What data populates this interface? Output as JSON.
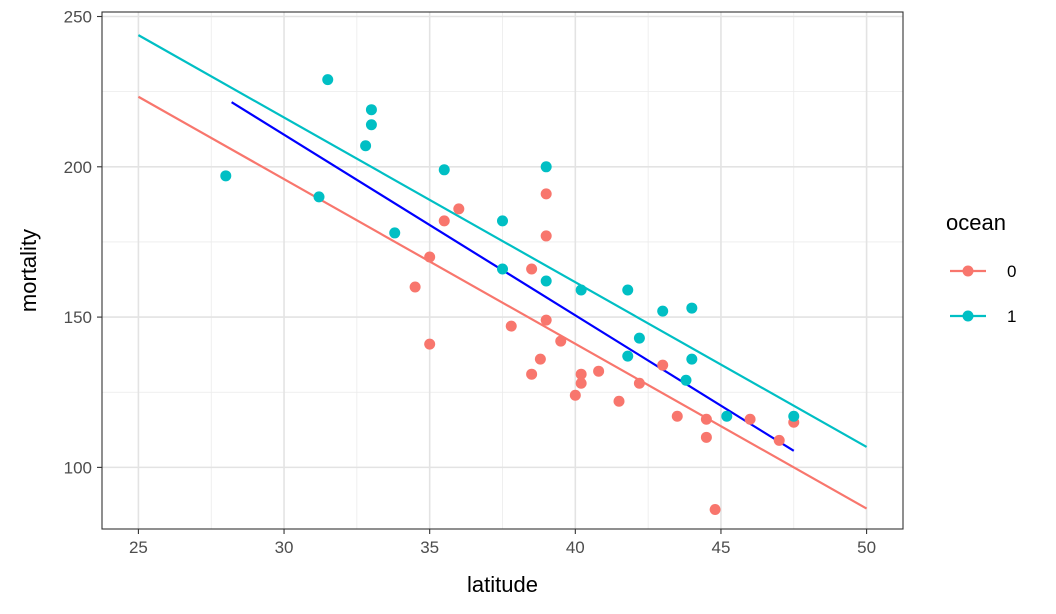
{
  "chart_data": {
    "type": "scatter",
    "xlabel": "latitude",
    "ylabel": "mortality",
    "xlim": [
      23.75,
      51.25
    ],
    "ylim": [
      79.5,
      251.5
    ],
    "xticks": [
      25,
      30,
      35,
      40,
      45,
      50
    ],
    "yticks": [
      100,
      150,
      200,
      250
    ],
    "grid": true,
    "legend": {
      "title": "ocean",
      "position": "right",
      "entries": [
        {
          "label": "0",
          "color": "#F8766D"
        },
        {
          "label": "1",
          "color": "#00BFC4"
        }
      ]
    },
    "series": [
      {
        "name": "0",
        "color": "#F8766D",
        "points": [
          [
            35.5,
            182
          ],
          [
            36,
            186
          ],
          [
            35,
            170
          ],
          [
            34.5,
            160
          ],
          [
            35,
            141
          ],
          [
            37.8,
            147
          ],
          [
            38.5,
            166
          ],
          [
            38.5,
            131
          ],
          [
            38.8,
            136
          ],
          [
            39,
            191
          ],
          [
            39,
            177
          ],
          [
            39,
            149
          ],
          [
            39.5,
            142
          ],
          [
            40,
            124
          ],
          [
            40.2,
            131
          ],
          [
            40.2,
            128
          ],
          [
            40.8,
            132
          ],
          [
            41.5,
            122
          ],
          [
            42.2,
            128
          ],
          [
            43,
            134
          ],
          [
            43.5,
            117
          ],
          [
            44.5,
            116
          ],
          [
            44.5,
            110
          ],
          [
            44.8,
            86
          ],
          [
            46,
            116
          ],
          [
            47,
            109
          ],
          [
            47.5,
            115
          ]
        ]
      },
      {
        "name": "1",
        "color": "#00BFC4",
        "points": [
          [
            28,
            197
          ],
          [
            31.2,
            190
          ],
          [
            31.5,
            229
          ],
          [
            32.8,
            207
          ],
          [
            33,
            219
          ],
          [
            33,
            214
          ],
          [
            33.8,
            178
          ],
          [
            35.5,
            199
          ],
          [
            37.5,
            182
          ],
          [
            37.5,
            166
          ],
          [
            39,
            200
          ],
          [
            39,
            162
          ],
          [
            40.2,
            159
          ],
          [
            41.8,
            159
          ],
          [
            41.8,
            137
          ],
          [
            42.2,
            143
          ],
          [
            43,
            152
          ],
          [
            43.8,
            129
          ],
          [
            44,
            153
          ],
          [
            44,
            136
          ],
          [
            45.2,
            117
          ],
          [
            47.5,
            117
          ]
        ]
      }
    ],
    "lines": [
      {
        "color": "#F8766D",
        "x": [
          25,
          50
        ],
        "y": [
          223.3,
          86.3
        ]
      },
      {
        "color": "#00BFC4",
        "x": [
          25,
          50
        ],
        "y": [
          243.8,
          106.8
        ]
      },
      {
        "color": "#0000FF",
        "x": [
          28.2,
          47.5
        ],
        "y": [
          221.5,
          105.5
        ]
      }
    ]
  }
}
